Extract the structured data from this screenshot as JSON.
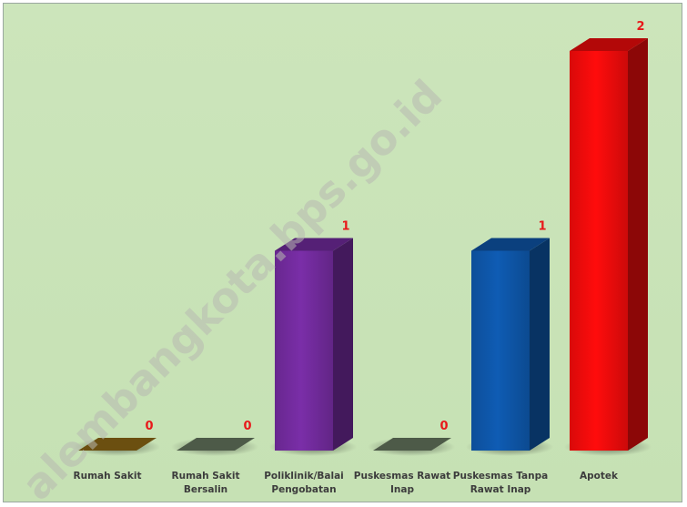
{
  "chart_data": {
    "type": "bar",
    "style": "3d-column",
    "categories": [
      [
        "Rumah Sakit"
      ],
      [
        "Rumah Sakit",
        "Bersalin"
      ],
      [
        "Poliklinik/Balai",
        "Pengobatan"
      ],
      [
        "Puskesmas Rawat",
        "Inap"
      ],
      [
        "Puskesmas Tanpa",
        "Rawat Inap"
      ],
      [
        "Apotek"
      ]
    ],
    "values": [
      0,
      0,
      1,
      0,
      1,
      2
    ],
    "colors": [
      "#6b4f10",
      "#4d5a48",
      "#7a2ea8",
      "#4d5a48",
      "#0f5cb4",
      "#ff0c0c"
    ],
    "ylim": [
      0,
      2
    ],
    "grid": false,
    "legend": "none",
    "background": "#c9e3b8",
    "value_labels": [
      "0",
      "0",
      "1",
      "0",
      "1",
      "2"
    ]
  },
  "watermark": "alembangkota.bps.go.id"
}
